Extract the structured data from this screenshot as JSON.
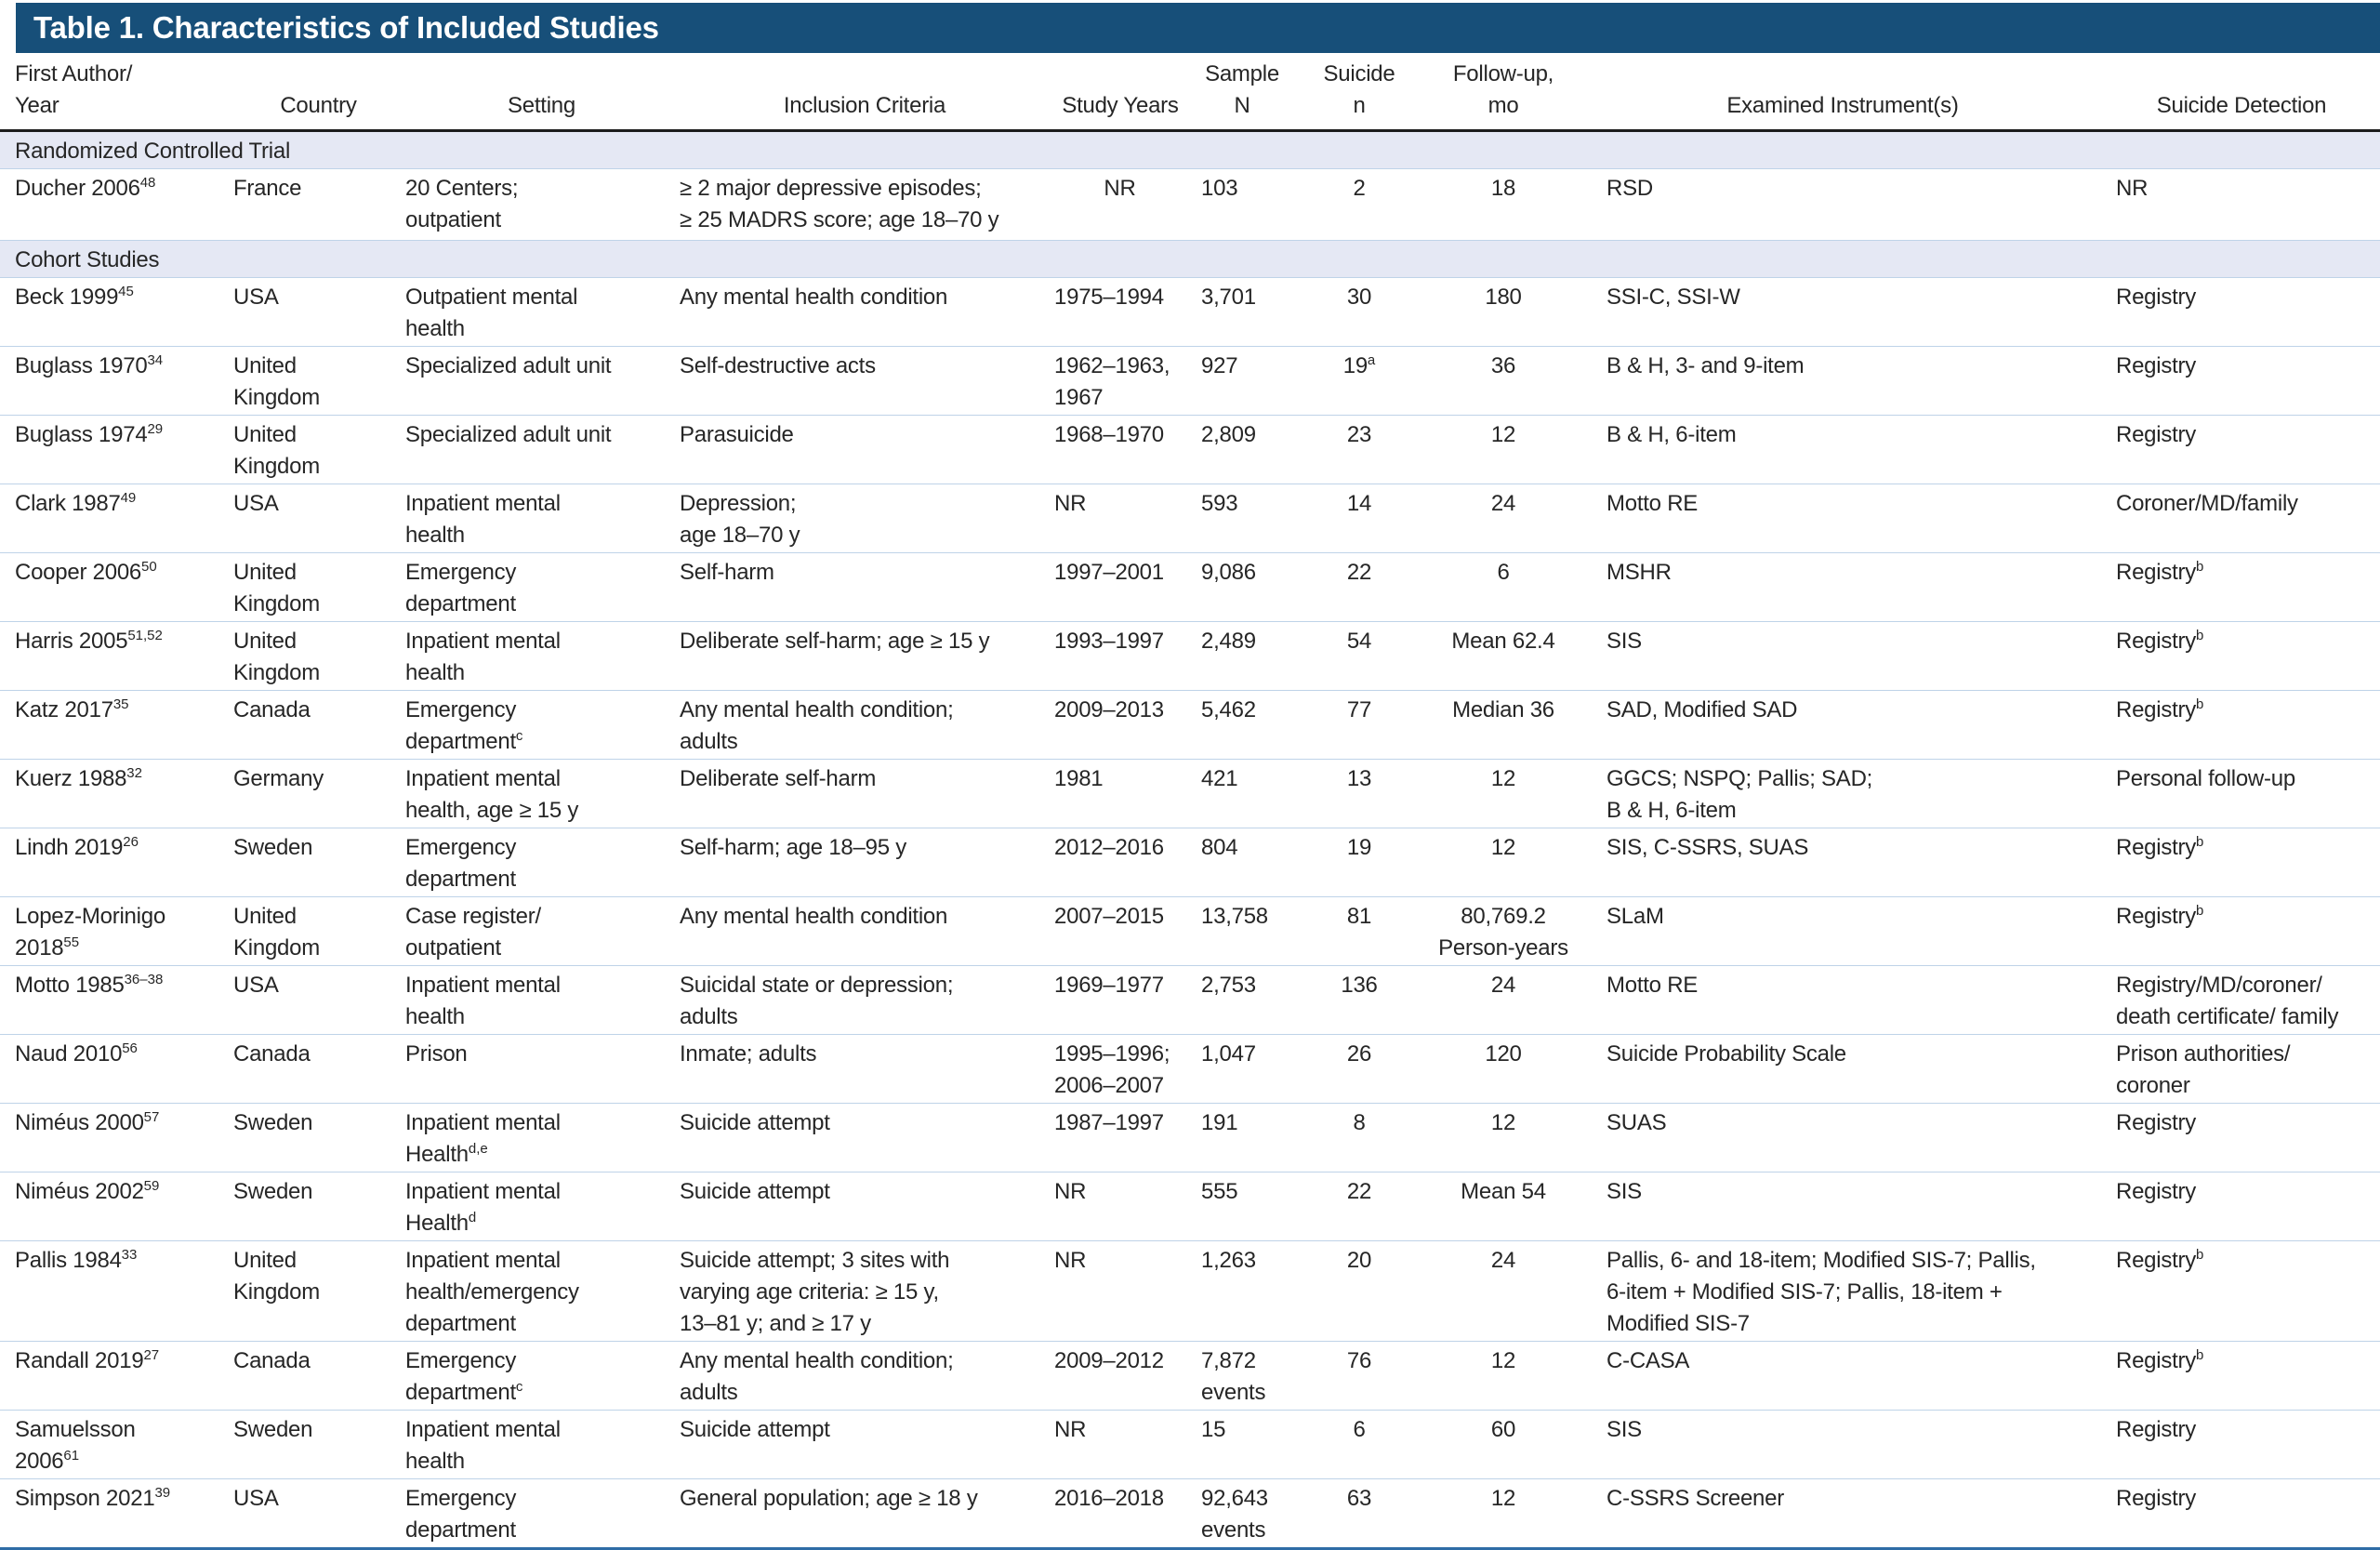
{
  "title": "Table 1. Characteristics of Included Studies",
  "colors": {
    "header_bar": "#174F79",
    "title_text": "#FFFFFF",
    "section_band": "#E5E8F4",
    "row_divider": "#BFD3E8",
    "header_rule": "#1C1C1C",
    "bottom_rule": "#2E6CA6",
    "body_text": "#262626"
  },
  "columns": [
    {
      "label": "First Author/\nYear"
    },
    {
      "label": "Country"
    },
    {
      "label": "Setting"
    },
    {
      "label": "Inclusion Criteria"
    },
    {
      "label": "Study Years"
    },
    {
      "label": "Sample\nN"
    },
    {
      "label": "Suicide\nn"
    },
    {
      "label": "Follow-up,\nmo"
    },
    {
      "label": "Examined Instrument(s)"
    },
    {
      "label": "Suicide Detection"
    }
  ],
  "sections": [
    {
      "label": "Randomized Controlled Trial",
      "rows": [
        {
          "author": "Ducher 2006",
          "author_sup": "48",
          "country": "France",
          "setting": "20 Centers;\noutpatient",
          "inclusion": "≥ 2 major depressive episodes;\n≥ 25 MADRS score; age 18–70 y",
          "study_years": "NR",
          "sample_n": "103",
          "suicide_n": "2",
          "follow_up": "18",
          "instruments": "RSD",
          "detection": "NR"
        }
      ]
    },
    {
      "label": "Cohort Studies",
      "rows": [
        {
          "author": "Beck 1999",
          "author_sup": "45",
          "country": "USA",
          "setting": "Outpatient mental\nhealth",
          "inclusion": "Any mental health condition",
          "study_years": "1975–1994",
          "sample_n": "3,701",
          "suicide_n": "30",
          "follow_up": "180",
          "instruments": "SSI-C, SSI-W",
          "detection": "Registry"
        },
        {
          "author": "Buglass 1970",
          "author_sup": "34",
          "country": "United\nKingdom",
          "setting": "Specialized adult unit",
          "inclusion": "Self-destructive acts",
          "study_years": "1962–1963,\n1967",
          "sample_n": "927",
          "suicide_n": "19",
          "suicide_n_sup": "a",
          "follow_up": "36",
          "instruments": "B & H, 3- and 9-item",
          "detection": "Registry"
        },
        {
          "author": "Buglass 1974",
          "author_sup": "29",
          "country": "United\nKingdom",
          "setting": "Specialized adult unit",
          "inclusion": "Parasuicide",
          "study_years": "1968–1970",
          "sample_n": "2,809",
          "suicide_n": "23",
          "follow_up": "12",
          "instruments": "B & H, 6-item",
          "detection": "Registry"
        },
        {
          "author": "Clark 1987",
          "author_sup": "49",
          "country": "USA",
          "setting": "Inpatient mental\nhealth",
          "inclusion": "Depression;\nage 18–70 y",
          "study_years": "NR",
          "sample_n": "593",
          "suicide_n": "14",
          "follow_up": "24",
          "instruments": "Motto RE",
          "detection": "Coroner/MD/family"
        },
        {
          "author": "Cooper 2006",
          "author_sup": "50",
          "country": "United\nKingdom",
          "setting": "Emergency\ndepartment",
          "inclusion": "Self-harm",
          "study_years": "1997–2001",
          "sample_n": "9,086",
          "suicide_n": "22",
          "follow_up": "6",
          "instruments": "MSHR",
          "detection": "Registry",
          "detection_sup": "b"
        },
        {
          "author": "Harris 2005",
          "author_sup": "51,52",
          "country": "United\nKingdom",
          "setting": "Inpatient mental\nhealth",
          "inclusion": "Deliberate self-harm; age ≥ 15 y",
          "study_years": "1993–1997",
          "sample_n": "2,489",
          "suicide_n": "54",
          "follow_up": "Mean 62.4",
          "instruments": "SIS",
          "detection": "Registry",
          "detection_sup": "b"
        },
        {
          "author": "Katz 2017",
          "author_sup": "35",
          "country": "Canada",
          "setting": "Emergency\ndepartment",
          "setting_sup": "c",
          "inclusion": "Any mental health condition;\nadults",
          "study_years": "2009–2013",
          "sample_n": "5,462",
          "suicide_n": "77",
          "follow_up": "Median 36",
          "instruments": "SAD, Modified SAD",
          "detection": "Registry",
          "detection_sup": "b"
        },
        {
          "author": "Kuerz 1988",
          "author_sup": "32",
          "country": "Germany",
          "setting": "Inpatient mental\nhealth, age ≥ 15 y",
          "inclusion": "Deliberate self-harm",
          "study_years": "1981",
          "sample_n": "421",
          "suicide_n": "13",
          "follow_up": "12",
          "instruments": "GGCS; NSPQ; Pallis; SAD;\nB & H, 6-item",
          "detection": "Personal follow-up"
        },
        {
          "author": "Lindh 2019",
          "author_sup": "26",
          "country": "Sweden",
          "setting": "Emergency\ndepartment",
          "inclusion": "Self-harm; age 18–95 y",
          "study_years": "2012–2016",
          "sample_n": "804",
          "suicide_n": "19",
          "follow_up": "12",
          "instruments": "SIS, C-SSRS, SUAS",
          "detection": "Registry",
          "detection_sup": "b"
        },
        {
          "author": "Lopez-Morinigo\n2018",
          "author_sup": "55",
          "country": "United\nKingdom",
          "setting": "Case register/\noutpatient",
          "inclusion": "Any mental health condition",
          "study_years": "2007–2015",
          "sample_n": "13,758",
          "suicide_n": "81",
          "follow_up": "80,769.2\nPerson-years",
          "instruments": "SLaM",
          "detection": "Registry",
          "detection_sup": "b"
        },
        {
          "author": "Motto 1985",
          "author_sup": "36–38",
          "country": "USA",
          "setting": "Inpatient mental\nhealth",
          "inclusion": "Suicidal state or depression;\nadults",
          "study_years": "1969–1977",
          "sample_n": "2,753",
          "suicide_n": "136",
          "follow_up": "24",
          "instruments": "Motto RE",
          "detection": "Registry/MD/coroner/\ndeath certificate/ family"
        },
        {
          "author": "Naud 2010",
          "author_sup": "56",
          "country": "Canada",
          "setting": "Prison",
          "inclusion": "Inmate; adults",
          "study_years": "1995–1996;\n2006–2007",
          "sample_n": "1,047",
          "suicide_n": "26",
          "follow_up": "120",
          "instruments": "Suicide Probability Scale",
          "detection": "Prison authorities/\ncoroner"
        },
        {
          "author": "Niméus 2000",
          "author_sup": "57",
          "country": "Sweden",
          "setting": "Inpatient mental\nHealth",
          "setting_sup": "d,e",
          "inclusion": "Suicide attempt",
          "study_years": "1987–1997",
          "sample_n": "191",
          "suicide_n": "8",
          "follow_up": "12",
          "instruments": "SUAS",
          "detection": "Registry"
        },
        {
          "author": "Niméus 2002",
          "author_sup": "59",
          "country": "Sweden",
          "setting": "Inpatient mental\nHealth",
          "setting_sup": "d",
          "inclusion": "Suicide attempt",
          "study_years": "NR",
          "sample_n": "555",
          "suicide_n": "22",
          "follow_up": "Mean 54",
          "instruments": "SIS",
          "detection": "Registry"
        },
        {
          "author": "Pallis 1984",
          "author_sup": "33",
          "country": "United\nKingdom",
          "setting": "Inpatient mental\nhealth/emergency\ndepartment",
          "inclusion": "Suicide attempt; 3 sites with\nvarying age criteria: ≥ 15 y,\n13–81 y; and ≥ 17 y",
          "study_years": "NR",
          "sample_n": "1,263",
          "suicide_n": "20",
          "follow_up": "24",
          "instruments": "Pallis, 6- and 18-item; Modified SIS-7; Pallis,\n6-item + Modified SIS-7; Pallis, 18-item +\nModified SIS-7",
          "detection": "Registry",
          "detection_sup": "b"
        },
        {
          "author": "Randall 2019",
          "author_sup": "27",
          "country": "Canada",
          "setting": "Emergency\ndepartment",
          "setting_sup": "c",
          "inclusion": "Any mental health condition;\nadults",
          "study_years": "2009–2012",
          "sample_n": "7,872\nevents",
          "suicide_n": "76",
          "follow_up": "12",
          "instruments": "C-CASA",
          "detection": "Registry",
          "detection_sup": "b"
        },
        {
          "author": "Samuelsson\n2006",
          "author_sup": "61",
          "country": "Sweden",
          "setting": "Inpatient mental\nhealth",
          "inclusion": "Suicide attempt",
          "study_years": "NR",
          "sample_n": "15",
          "suicide_n": "6",
          "follow_up": "60",
          "instruments": "SIS",
          "detection": "Registry"
        },
        {
          "author": "Simpson 2021",
          "author_sup": "39",
          "country": "USA",
          "setting": "Emergency\ndepartment",
          "inclusion": "General population; age ≥ 18 y",
          "study_years": "2016–2018",
          "sample_n": "92,643\nevents",
          "suicide_n": "63",
          "follow_up": "12",
          "instruments": "C-SSRS Screener",
          "detection": "Registry"
        }
      ]
    }
  ]
}
